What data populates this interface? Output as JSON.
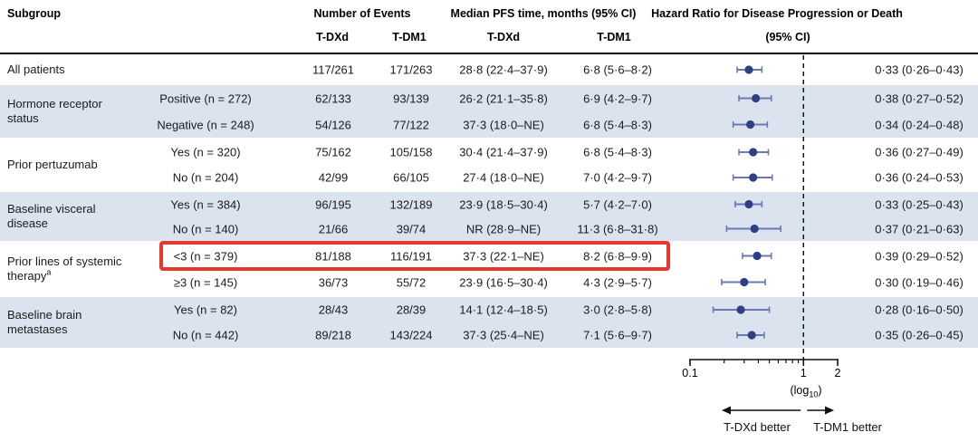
{
  "colors": {
    "band_blue": "#dbe3ef",
    "marker_navy": "#2d3f85",
    "ci_blue": "#6b7ab2",
    "highlight_red": "#e8372c",
    "axis_black": "#111111"
  },
  "header": {
    "subgroup": "Subgroup",
    "events": "Number of Events",
    "median": "Median PFS time, months (95% CI)",
    "hr_line1": "Hazard Ratio for Disease Progression or Death",
    "hr_line2": "(95% CI)",
    "events_tdxd": "T-DXd",
    "events_tdm1": "T-DM1",
    "median_tdxd": "T-DXd",
    "median_tdm1": "T-DM1"
  },
  "chart_data": {
    "type": "forest",
    "x_axis": {
      "scale": "log10",
      "min": 0.1,
      "max": 2,
      "major_ticks": [
        0.1,
        1,
        2
      ],
      "major_tick_labels": [
        "0.1",
        "1",
        "2"
      ],
      "minor_ticks": [
        0.2,
        0.3,
        0.4,
        0.5,
        0.6,
        0.7,
        0.8,
        0.9
      ],
      "reference_value": 1,
      "scale_label_prefix": "(log",
      "scale_label_sub": "10",
      "scale_label_suffix": ")"
    },
    "direction_labels": {
      "left": "T-DXd better",
      "right": "T-DM1 better"
    },
    "groups": [
      {
        "label": "All patients",
        "rows": [
          {
            "label": "",
            "events_tdxd": "117/261",
            "events_tdm1": "171/263",
            "median_tdxd": "28·8 (22·4–37·9)",
            "median_tdm1": "6·8 (5·6–8·2)",
            "hr": 0.33,
            "ci_low": 0.26,
            "ci_high": 0.43,
            "hr_text": "0·33 (0·26–0·43)"
          }
        ]
      },
      {
        "label": "Hormone receptor status",
        "rows": [
          {
            "label": "Positive (n = 272)",
            "events_tdxd": "62/133",
            "events_tdm1": "93/139",
            "median_tdxd": "26·2 (21·1–35·8)",
            "median_tdm1": "6·9 (4·2–9·7)",
            "hr": 0.38,
            "ci_low": 0.27,
            "ci_high": 0.52,
            "hr_text": "0·38 (0·27–0·52)"
          },
          {
            "label": "Negative (n = 248)",
            "events_tdxd": "54/126",
            "events_tdm1": "77/122",
            "median_tdxd": "37·3 (18·0–NE)",
            "median_tdm1": "6·8 (5·4–8·3)",
            "hr": 0.34,
            "ci_low": 0.24,
            "ci_high": 0.48,
            "hr_text": "0·34 (0·24–0·48)"
          }
        ]
      },
      {
        "label": "Prior pertuzumab",
        "rows": [
          {
            "label": "Yes (n = 320)",
            "events_tdxd": "75/162",
            "events_tdm1": "105/158",
            "median_tdxd": "30·4 (21·4–37·9)",
            "median_tdm1": "6·8 (5·4–8·3)",
            "hr": 0.36,
            "ci_low": 0.27,
            "ci_high": 0.49,
            "hr_text": "0·36 (0·27–0·49)"
          },
          {
            "label": "No (n = 204)",
            "events_tdxd": "42/99",
            "events_tdm1": "66/105",
            "median_tdxd": "27·4 (18·0–NE)",
            "median_tdm1": "7·0 (4·2–9·7)",
            "hr": 0.36,
            "ci_low": 0.24,
            "ci_high": 0.53,
            "hr_text": "0·36 (0·24–0·53)"
          }
        ]
      },
      {
        "label": "Baseline visceral disease",
        "rows": [
          {
            "label": "Yes (n = 384)",
            "events_tdxd": "96/195",
            "events_tdm1": "132/189",
            "median_tdxd": "23·9 (18·5–30·4)",
            "median_tdm1": "5·7 (4·2–7·0)",
            "hr": 0.33,
            "ci_low": 0.25,
            "ci_high": 0.43,
            "hr_text": "0·33 (0·25–0·43)"
          },
          {
            "label": "No (n = 140)",
            "events_tdxd": "21/66",
            "events_tdm1": "39/74",
            "median_tdxd": "NR (28·9–NE)",
            "median_tdm1": "11·3 (6·8–31·8)",
            "hr": 0.37,
            "ci_low": 0.21,
            "ci_high": 0.63,
            "hr_text": "0·37 (0·21–0·63)"
          }
        ]
      },
      {
        "label": "Prior lines of systemic therapy",
        "sup": "a",
        "rows": [
          {
            "label": "<3 (n = 379)",
            "highlight": true,
            "events_tdxd": "81/188",
            "events_tdm1": "116/191",
            "median_tdxd": "37·3 (22·1–NE)",
            "median_tdm1": "8·2 (6·8–9·9)",
            "hr": 0.39,
            "ci_low": 0.29,
            "ci_high": 0.52,
            "hr_text": "0·39 (0·29–0·52)"
          },
          {
            "label": "≥3 (n = 145)",
            "events_tdxd": "36/73",
            "events_tdm1": "55/72",
            "median_tdxd": "23·9 (16·5–30·4)",
            "median_tdm1": "4·3 (2·9–5·7)",
            "hr": 0.3,
            "ci_low": 0.19,
            "ci_high": 0.46,
            "hr_text": "0·30 (0·19–0·46)"
          }
        ]
      },
      {
        "label": "Baseline brain metastases",
        "rows": [
          {
            "label": "Yes (n = 82)",
            "events_tdxd": "28/43",
            "events_tdm1": "28/39",
            "median_tdxd": "14·1 (12·4–18·5)",
            "median_tdm1": "3·0 (2·8–5·8)",
            "hr": 0.28,
            "ci_low": 0.16,
            "ci_high": 0.5,
            "hr_text": "0·28 (0·16–0·50)"
          },
          {
            "label": "No (n = 442)",
            "events_tdxd": "89/218",
            "events_tdm1": "143/224",
            "median_tdxd": "37·3 (25·4–NE)",
            "median_tdm1": "7·1 (5·6–9·7)",
            "hr": 0.35,
            "ci_low": 0.26,
            "ci_high": 0.45,
            "hr_text": "0·35 (0·26–0·45)"
          }
        ]
      }
    ]
  }
}
